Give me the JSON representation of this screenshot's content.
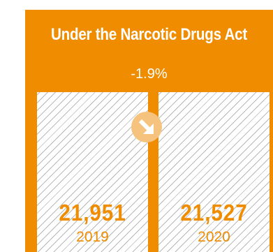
{
  "chart_data": {
    "type": "bar",
    "title": "Under the Narcotic Drugs Act",
    "change_label": "-1.9%",
    "categories": [
      "2019",
      "2020"
    ],
    "values": [
      21951,
      21527
    ],
    "value_labels": [
      "21,951",
      "21,527"
    ],
    "xlabel": "",
    "ylabel": ""
  },
  "colors": {
    "accent": "#F08C00",
    "badge": "#F6C37F",
    "bar_fill": "#FFFFFF",
    "hatch": "#B9B9B9"
  },
  "icons": {
    "change_indicator": "arrow-down-right-icon"
  }
}
